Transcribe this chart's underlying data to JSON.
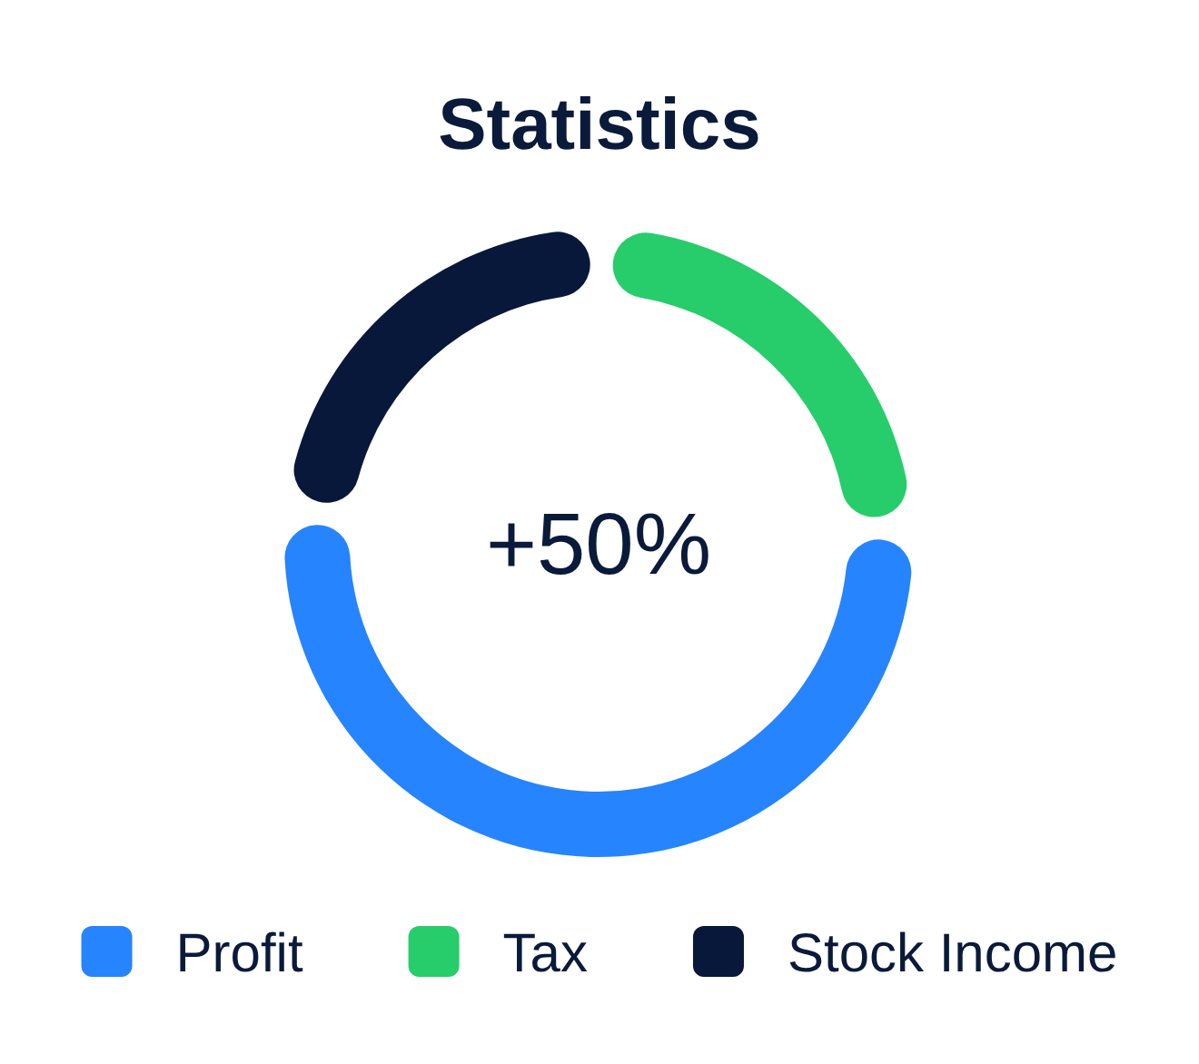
{
  "chart_data": {
    "type": "donut",
    "title": "Statistics",
    "categories": [
      "Profit",
      "Tax",
      "Stock Income"
    ],
    "values": [
      52.5,
      24,
      23.5
    ],
    "colors": [
      "#2684ff",
      "#26cd6a",
      "#08183a"
    ],
    "annotations": [
      "+50%"
    ],
    "legend": "bottom"
  }
}
